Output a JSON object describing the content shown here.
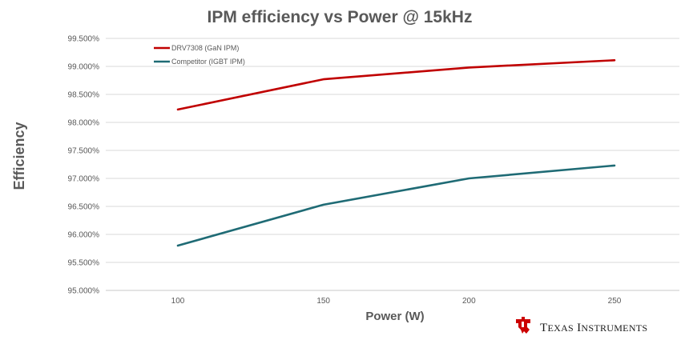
{
  "chart_data": {
    "type": "line",
    "title": "IPM efficiency vs Power @ 15kHz",
    "xlabel": "Power (W)",
    "ylabel": "Efficiency",
    "x": [
      100,
      150,
      200,
      250
    ],
    "x_ticks": [
      "100",
      "150",
      "200",
      "250"
    ],
    "y_ticks": [
      "95.000%",
      "95.500%",
      "96.000%",
      "96.500%",
      "97.000%",
      "97.500%",
      "98.000%",
      "98.500%",
      "99.000%",
      "99.500%"
    ],
    "ylim": [
      95.0,
      99.5
    ],
    "grid": true,
    "legend_position": "top-left",
    "series": [
      {
        "name": "DRV7308 (GaN IPM)",
        "color": "#c00000",
        "values": [
          98.23,
          98.77,
          98.98,
          99.11
        ]
      },
      {
        "name": "Competitor (IGBT IPM)",
        "color": "#1f6b75",
        "values": [
          95.8,
          96.53,
          97.0,
          97.23
        ]
      }
    ]
  },
  "brand": {
    "name": "Texas Instruments",
    "logo_icon": "ti-logo-icon",
    "color": "#cc0000"
  }
}
